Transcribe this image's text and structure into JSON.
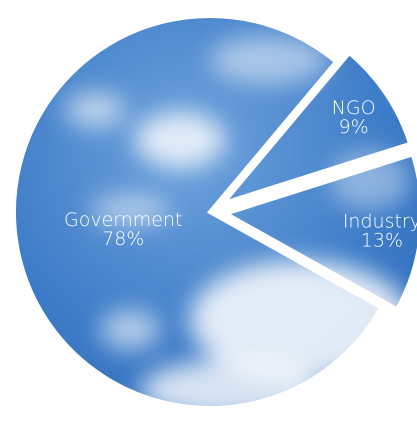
{
  "chart_data": {
    "type": "pie",
    "categories": [
      "Government",
      "NGO",
      "Industry"
    ],
    "values": [
      78,
      9,
      13
    ],
    "value_labels": [
      "78%",
      "9%",
      "13%"
    ],
    "exploded": [
      false,
      true,
      true
    ]
  }
}
